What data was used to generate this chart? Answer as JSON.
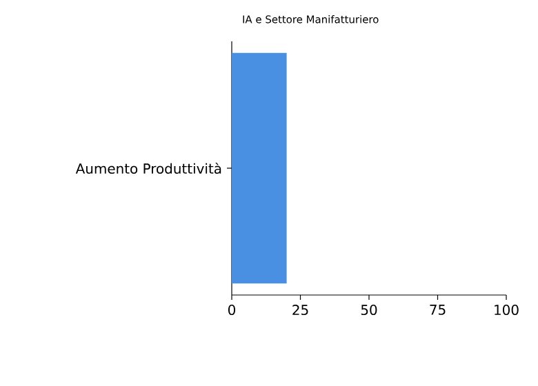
{
  "chart_data": {
    "type": "bar",
    "orientation": "horizontal",
    "title": "IA e Settore Manifatturiero",
    "categories": [
      "Aumento Produttività"
    ],
    "values": [
      20
    ],
    "color": "#4a90e2",
    "xlim": [
      0,
      100
    ],
    "xticks": [
      0,
      25,
      50,
      75,
      100
    ]
  }
}
